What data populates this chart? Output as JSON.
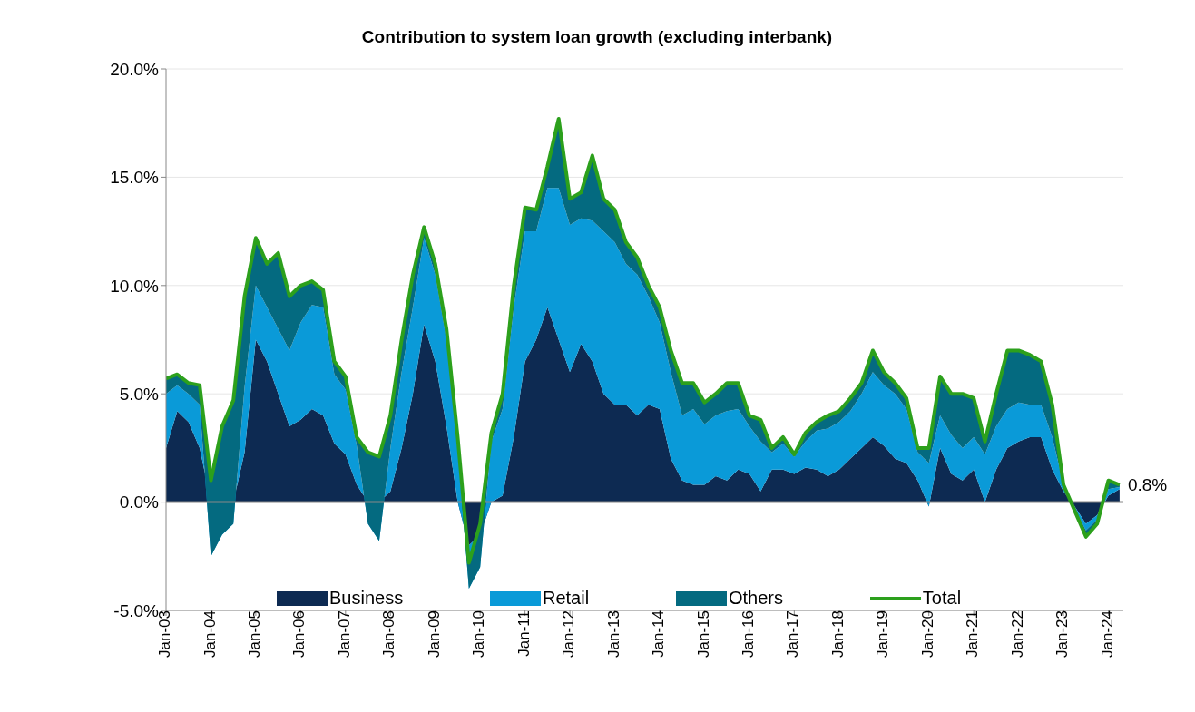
{
  "chart_data": {
    "type": "area",
    "title": "Contribution to system loan growth (excluding interbank)",
    "stacked": true,
    "grid": "y",
    "legend": "bottom",
    "x": [
      "2003-01",
      "2003-04",
      "2003-07",
      "2003-10",
      "2004-01",
      "2004-04",
      "2004-07",
      "2004-10",
      "2005-01",
      "2005-04",
      "2005-07",
      "2005-10",
      "2006-01",
      "2006-04",
      "2006-07",
      "2006-10",
      "2007-01",
      "2007-04",
      "2007-07",
      "2007-10",
      "2008-01",
      "2008-04",
      "2008-07",
      "2008-10",
      "2009-01",
      "2009-04",
      "2009-07",
      "2009-10",
      "2010-01",
      "2010-04",
      "2010-07",
      "2010-10",
      "2011-01",
      "2011-04",
      "2011-07",
      "2011-10",
      "2012-01",
      "2012-04",
      "2012-07",
      "2012-10",
      "2013-01",
      "2013-04",
      "2013-07",
      "2013-10",
      "2014-01",
      "2014-04",
      "2014-07",
      "2014-10",
      "2015-01",
      "2015-04",
      "2015-07",
      "2015-10",
      "2016-01",
      "2016-04",
      "2016-07",
      "2016-10",
      "2017-01",
      "2017-04",
      "2017-07",
      "2017-10",
      "2018-01",
      "2018-04",
      "2018-07",
      "2018-10",
      "2019-01",
      "2019-04",
      "2019-07",
      "2019-10",
      "2020-01",
      "2020-04",
      "2020-07",
      "2020-10",
      "2021-01",
      "2021-04",
      "2021-07",
      "2021-10",
      "2022-01",
      "2022-04",
      "2022-07",
      "2022-10",
      "2023-01",
      "2023-04",
      "2023-07",
      "2023-10",
      "2024-01",
      "2024-04"
    ],
    "series": [
      {
        "name": "Business",
        "color": "#0d2a52",
        "values": [
          2.5,
          4.2,
          3.7,
          2.5,
          0,
          0,
          0,
          2.3,
          7.5,
          6.5,
          5.0,
          3.5,
          3.8,
          4.3,
          4.0,
          2.7,
          2.2,
          0.8,
          0,
          0,
          0.5,
          2.5,
          5.0,
          8.2,
          6.5,
          3.5,
          0,
          -2.0,
          -1.5,
          0,
          0.3,
          3.0,
          6.5,
          7.5,
          9.0,
          7.5,
          6.0,
          7.3,
          6.5,
          5.0,
          4.5,
          4.5,
          4.0,
          4.5,
          4.3,
          2.0,
          1.0,
          0.8,
          0.8,
          1.2,
          1.0,
          1.5,
          1.3,
          0.5,
          1.5,
          1.5,
          1.3,
          1.6,
          1.5,
          1.2,
          1.5,
          2.0,
          2.5,
          3.0,
          2.6,
          2.0,
          1.8,
          1.0,
          -0.2,
          2.5,
          1.3,
          1.0,
          1.5,
          0,
          1.5,
          2.5,
          2.8,
          3.0,
          3.0,
          1.5,
          0.5,
          -0.2,
          -1.0,
          -0.6,
          0.3,
          0.6
        ]
      },
      {
        "name": "Retail",
        "color": "#0a9ad8",
        "values": [
          2.5,
          1.2,
          1.3,
          2.0,
          -2.5,
          -1.5,
          -1.0,
          3.0,
          2.5,
          2.5,
          3.0,
          3.5,
          4.5,
          4.8,
          5.0,
          3.2,
          3.0,
          1.8,
          -1.0,
          -1.8,
          2.0,
          3.5,
          4.0,
          4.0,
          4.0,
          4.0,
          2.5,
          -2.0,
          -1.5,
          2.8,
          4.0,
          6.0,
          6.0,
          5.0,
          5.5,
          7.0,
          6.8,
          5.8,
          6.5,
          7.5,
          7.5,
          6.5,
          6.5,
          5.0,
          4.0,
          4.0,
          3.0,
          3.5,
          2.8,
          2.8,
          3.2,
          2.8,
          2.2,
          2.3,
          0.8,
          1.2,
          0.8,
          1.2,
          1.8,
          2.2,
          2.2,
          2.2,
          2.5,
          3.0,
          2.8,
          3.0,
          2.5,
          1.3,
          2.0,
          1.5,
          1.8,
          1.5,
          1.5,
          2.2,
          2.0,
          1.8,
          1.8,
          1.5,
          1.5,
          1.5,
          0.3,
          -0.1,
          -0.3,
          -0.2,
          0.3,
          0.1
        ]
      },
      {
        "name": "Others",
        "color": "#046a80",
        "values": [
          0.7,
          0.5,
          0.5,
          0.9,
          3.5,
          5.0,
          5.7,
          4.2,
          2.2,
          2.0,
          3.5,
          2.5,
          1.7,
          1.1,
          0.8,
          0.6,
          0.6,
          0.4,
          3.3,
          3.9,
          1.5,
          1.5,
          1.5,
          0.5,
          0.5,
          0.5,
          0.5,
          1.2,
          2.0,
          0.4,
          0.7,
          1.0,
          1.1,
          1.0,
          1.0,
          3.2,
          1.2,
          1.2,
          3.0,
          1.5,
          1.5,
          1.0,
          0.8,
          0.5,
          0.7,
          1.0,
          1.5,
          1.2,
          1.0,
          1.0,
          1.3,
          1.2,
          0.5,
          1.0,
          0.2,
          0.3,
          0.1,
          0.4,
          0.4,
          0.6,
          0.5,
          0.6,
          0.5,
          1.0,
          0.6,
          0.5,
          0.5,
          0.2,
          0.7,
          1.8,
          1.9,
          2.5,
          1.8,
          0.6,
          1.5,
          2.7,
          2.4,
          2.3,
          2.0,
          1.5,
          0,
          -0.1,
          -0.3,
          -0.2,
          0.4,
          0.1
        ]
      },
      {
        "name": "Total",
        "type": "line",
        "color": "#2ca01c",
        "values": [
          5.7,
          5.9,
          5.5,
          5.4,
          1.0,
          3.5,
          4.7,
          9.5,
          12.2,
          11.0,
          11.5,
          9.5,
          10.0,
          10.2,
          9.8,
          6.5,
          5.8,
          3.0,
          2.3,
          2.1,
          4.0,
          7.5,
          10.5,
          12.7,
          11.0,
          8.0,
          3.0,
          -2.8,
          -1.0,
          3.2,
          5.0,
          10.0,
          13.6,
          13.5,
          15.5,
          17.7,
          14.0,
          14.3,
          16.0,
          14.0,
          13.5,
          12.0,
          11.3,
          10.0,
          9.0,
          7.0,
          5.5,
          5.5,
          4.6,
          5.0,
          5.5,
          5.5,
          4.0,
          3.8,
          2.5,
          3.0,
          2.2,
          3.2,
          3.7,
          4.0,
          4.2,
          4.8,
          5.5,
          7.0,
          6.0,
          5.5,
          4.8,
          2.5,
          2.5,
          5.8,
          5.0,
          5.0,
          4.8,
          2.8,
          5.0,
          7.0,
          7.0,
          6.8,
          6.5,
          4.5,
          0.8,
          -0.4,
          -1.6,
          -1.0,
          1.0,
          0.8
        ]
      }
    ],
    "xlim": [
      "2003-01",
      "2024-05"
    ],
    "xticks": [
      {
        "value": "2003-01",
        "label": "Jan-03"
      },
      {
        "value": "2004-01",
        "label": "Jan-04"
      },
      {
        "value": "2005-01",
        "label": "Jan-05"
      },
      {
        "value": "2006-01",
        "label": "Jan-06"
      },
      {
        "value": "2007-01",
        "label": "Jan-07"
      },
      {
        "value": "2008-01",
        "label": "Jan-08"
      },
      {
        "value": "2009-01",
        "label": "Jan-09"
      },
      {
        "value": "2010-01",
        "label": "Jan-10"
      },
      {
        "value": "2011-01",
        "label": "Jan-11"
      },
      {
        "value": "2012-01",
        "label": "Jan-12"
      },
      {
        "value": "2013-01",
        "label": "Jan-13"
      },
      {
        "value": "2014-01",
        "label": "Jan-14"
      },
      {
        "value": "2015-01",
        "label": "Jan-15"
      },
      {
        "value": "2016-01",
        "label": "Jan-16"
      },
      {
        "value": "2017-01",
        "label": "Jan-17"
      },
      {
        "value": "2018-01",
        "label": "Jan-18"
      },
      {
        "value": "2019-01",
        "label": "Jan-19"
      },
      {
        "value": "2020-01",
        "label": "Jan-20"
      },
      {
        "value": "2021-01",
        "label": "Jan-21"
      },
      {
        "value": "2022-01",
        "label": "Jan-22"
      },
      {
        "value": "2023-01",
        "label": "Jan-23"
      },
      {
        "value": "2024-01",
        "label": "Jan-24"
      }
    ],
    "ylim": [
      -5,
      20
    ],
    "yticks": [
      {
        "value": -5,
        "label": "-5.0%"
      },
      {
        "value": 0,
        "label": "0.0%"
      },
      {
        "value": 5,
        "label": "5.0%"
      },
      {
        "value": 10,
        "label": "10.0%"
      },
      {
        "value": 15,
        "label": "15.0%"
      },
      {
        "value": 20,
        "label": "20.0%"
      }
    ],
    "annotations": [
      {
        "text": "0.8%",
        "x": "2024-04",
        "y": 0.8
      }
    ]
  }
}
